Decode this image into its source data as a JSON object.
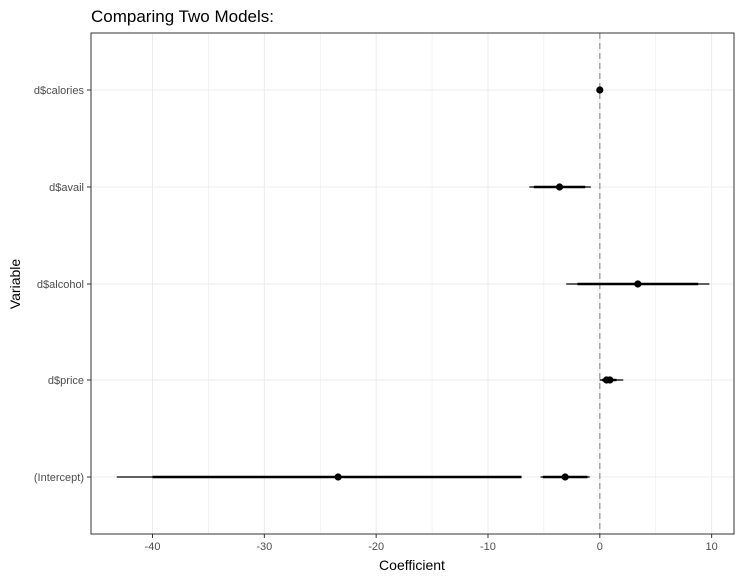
{
  "chart_data": {
    "type": "scatter",
    "subtype": "coefficient-plot",
    "title": "Comparing Two Models:",
    "xlabel": "Coefficient",
    "ylabel": "Variable",
    "xlim": [
      -45.5,
      12.0
    ],
    "x_ticks": [
      -40,
      -30,
      -20,
      -10,
      0,
      10
    ],
    "x_tick_labels": [
      "-40",
      "-30",
      "-20",
      "-10",
      "0",
      "10"
    ],
    "categories": [
      "(Intercept)",
      "d$price",
      "d$alcohol",
      "d$avail",
      "d$calories"
    ],
    "reference_line": {
      "x": 0,
      "style": "dashed",
      "color": "#999999"
    },
    "grid": true,
    "legend": "none",
    "series": [
      {
        "points": [
          {
            "variable": "(Intercept)",
            "estimate": -23.4,
            "inner": [
              -40.0,
              -7.0
            ],
            "outer": [
              -43.2,
              -7.0
            ]
          },
          {
            "variable": "d$price",
            "estimate": 0.9,
            "inner": [
              0.4,
              1.5
            ],
            "outer": [
              0.0,
              2.1
            ]
          },
          {
            "variable": "d$alcohol",
            "estimate": 3.4,
            "inner": [
              -2.0,
              8.8
            ],
            "outer": [
              -3.0,
              9.8
            ]
          },
          {
            "variable": "d$avail",
            "estimate": -3.6,
            "inner": [
              -5.9,
              -1.3
            ],
            "outer": [
              -6.3,
              -0.8
            ]
          },
          {
            "variable": "d$calories",
            "estimate": 0.0,
            "inner": [
              -0.1,
              0.1
            ],
            "outer": [
              -0.1,
              0.1
            ]
          }
        ]
      },
      {
        "points": [
          {
            "variable": "(Intercept)",
            "estimate": -3.1,
            "inner": [
              -5.1,
              -1.1
            ],
            "outer": [
              -5.3,
              -0.9
            ]
          },
          {
            "variable": "d$price",
            "estimate": 0.6,
            "inner": [
              0.2,
              1.1
            ],
            "outer": [
              0.0,
              1.3
            ]
          }
        ]
      }
    ],
    "colors": {
      "marker": "#000000",
      "panel_border": "#333333",
      "grid": "#ebebeb",
      "tick_text": "#4d4d4d"
    }
  }
}
